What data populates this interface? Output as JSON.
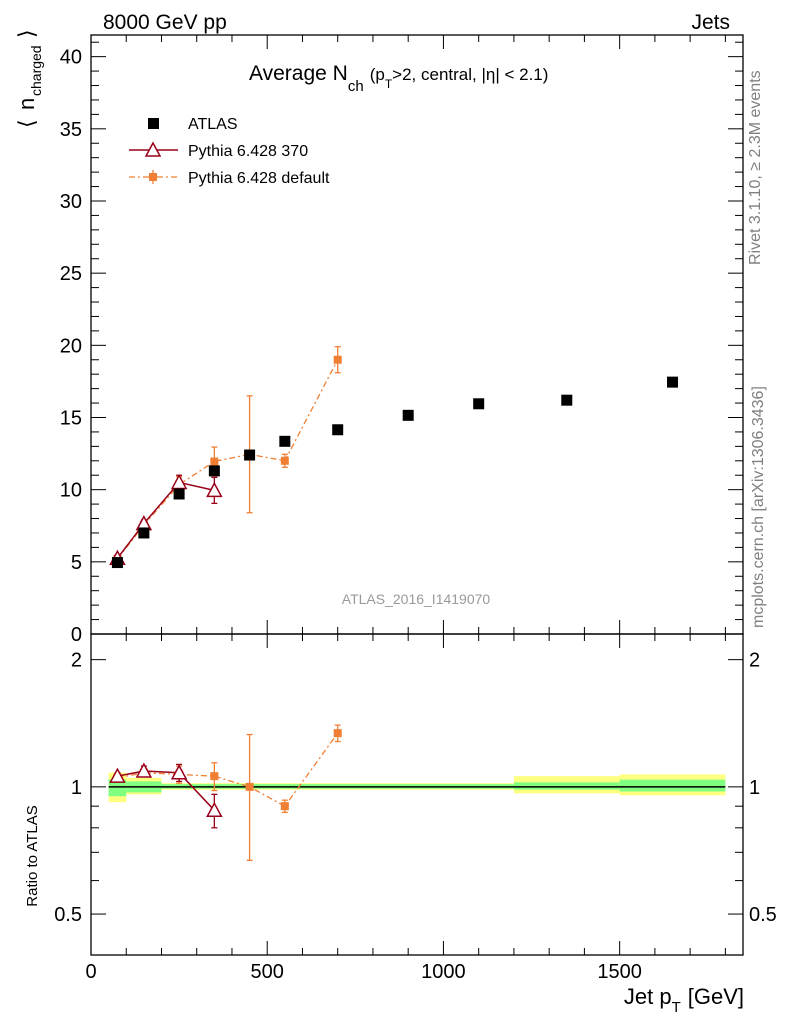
{
  "header": {
    "left": "8000 GeV pp",
    "right": "Jets"
  },
  "side_text": {
    "rivet": "Rivet 3.1.10, ≥ 2.3M events",
    "mcplots": "mcplots.cern.ch [arXiv:1306.3436]"
  },
  "watermark": "ATLAS_2016_I1419070",
  "colors": {
    "atlas": "#000000",
    "pythia370": "#99001a",
    "pythia_default": "#f07f33",
    "band_inner": "#80ff80",
    "band_outer": "#ffff80"
  },
  "chart_data": [
    {
      "type": "scatter",
      "title": "Average N_ch (p_T>2, central, |η| < 2.1)",
      "title_parts": {
        "main": "Average N",
        "sub1": "ch",
        "p1": "(p",
        "sub2": "T",
        "p2": ">2, central, |η| < 2.1)"
      },
      "ylabel": "⟨ n_charged ⟩",
      "ylabel_parts": {
        "open": "⟨",
        "n": "n",
        "sub": "charged",
        "close": "⟩"
      },
      "xlim": [
        0,
        1850
      ],
      "ylim": [
        0,
        41.5
      ],
      "yticks": [
        0,
        5,
        10,
        15,
        20,
        25,
        30,
        35,
        40
      ],
      "legend_position": "top-left",
      "series": [
        {
          "name": "ATLAS",
          "style": "data",
          "x": [
            75,
            150,
            250,
            350,
            450,
            550,
            700,
            900,
            1100,
            1350,
            1650
          ],
          "y": [
            4.95,
            7.0,
            9.7,
            11.3,
            12.4,
            13.35,
            14.15,
            15.15,
            15.95,
            16.2,
            17.45
          ],
          "err": [
            0.15,
            0.15,
            0.15,
            0.15,
            0.15,
            0.15,
            0.15,
            0.15,
            0.15,
            0.15,
            0.15
          ]
        },
        {
          "name": "Pythia 6.428 370",
          "style": "triangle",
          "x": [
            75,
            150,
            250,
            350
          ],
          "y": [
            5.25,
            7.65,
            10.5,
            9.95
          ],
          "err": [
            0.15,
            0.25,
            0.5,
            0.9
          ]
        },
        {
          "name": "Pythia 6.428 default",
          "style": "square-dashdot",
          "x": [
            75,
            150,
            250,
            350,
            450,
            550,
            700
          ],
          "y": [
            5.2,
            7.55,
            10.35,
            11.95,
            12.45,
            12.0,
            19.0
          ],
          "err": [
            0.15,
            0.2,
            0.55,
            1.0,
            4.05,
            0.45,
            0.9
          ]
        }
      ]
    },
    {
      "type": "scatter",
      "ylabel": "Ratio to ATLAS",
      "xlabel": "Jet p_T [GeV]",
      "xlabel_parts": {
        "main": "Jet p",
        "sub": "T",
        "unit": "[GeV]"
      },
      "xlim": [
        0,
        1850
      ],
      "ylim": [
        0.4,
        2.3
      ],
      "xticks": [
        0,
        500,
        1000,
        1500
      ],
      "yticks": [
        0.5,
        1,
        2
      ],
      "reference_line": 1,
      "bands": [
        {
          "x0": 50,
          "x1": 100,
          "inner": [
            0.95,
            1.04
          ],
          "outer": [
            0.92,
            1.08
          ]
        },
        {
          "x0": 100,
          "x1": 200,
          "inner": [
            0.97,
            1.03
          ],
          "outer": [
            0.96,
            1.05
          ]
        },
        {
          "x0": 200,
          "x1": 1200,
          "inner": [
            0.99,
            1.015
          ],
          "outer": [
            0.985,
            1.02
          ]
        },
        {
          "x0": 1200,
          "x1": 1500,
          "inner": [
            0.985,
            1.025
          ],
          "outer": [
            0.965,
            1.06
          ]
        },
        {
          "x0": 1500,
          "x1": 1800,
          "inner": [
            0.975,
            1.04
          ],
          "outer": [
            0.955,
            1.07
          ]
        }
      ],
      "series": [
        {
          "name": "Pythia 6.428 370",
          "style": "triangle",
          "x": [
            75,
            150,
            250,
            350
          ],
          "y": [
            1.06,
            1.09,
            1.08,
            0.88
          ],
          "err": [
            0.02,
            0.03,
            0.05,
            0.08
          ]
        },
        {
          "name": "Pythia 6.428 default",
          "style": "square-dashdot",
          "x": [
            75,
            150,
            250,
            350,
            450,
            550,
            700
          ],
          "y": [
            1.05,
            1.08,
            1.07,
            1.06,
            1.0,
            0.9,
            1.34
          ],
          "err": [
            0.02,
            0.02,
            0.05,
            0.08,
            0.33,
            0.03,
            0.06
          ]
        }
      ]
    }
  ]
}
